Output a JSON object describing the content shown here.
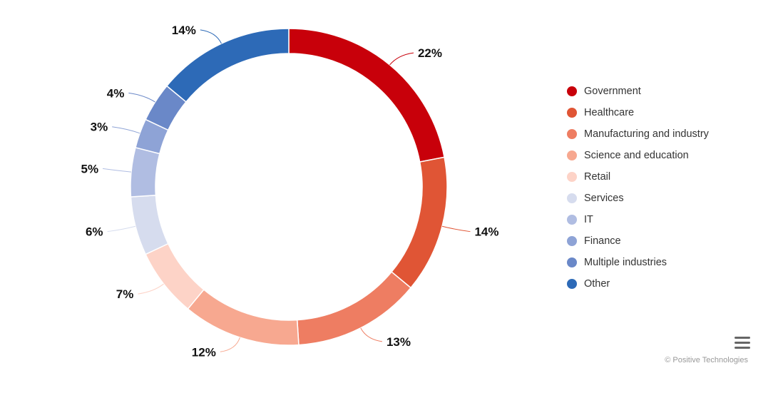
{
  "chart_data": {
    "type": "pie",
    "variant": "donut",
    "categories": [
      "Government",
      "Healthcare",
      "Manufacturing and industry",
      "Science and education",
      "Retail",
      "Services",
      "IT",
      "Finance",
      "Multiple industries",
      "Other"
    ],
    "values": [
      22,
      14,
      13,
      12,
      7,
      6,
      5,
      3,
      4,
      14
    ],
    "labels": [
      "22%",
      "14%",
      "13%",
      "12%",
      "7%",
      "6%",
      "5%",
      "3%",
      "4%",
      "14%"
    ],
    "colors": [
      "#c8000a",
      "#e05535",
      "#ee7d62",
      "#f7a890",
      "#fdd3c7",
      "#d6dcee",
      "#b0bde2",
      "#8ea3d6",
      "#6a88c8",
      "#2d6ab7"
    ],
    "legend_position": "right"
  },
  "credits": "© Positive Technologies",
  "menu_icon": "hamburger-menu-icon"
}
